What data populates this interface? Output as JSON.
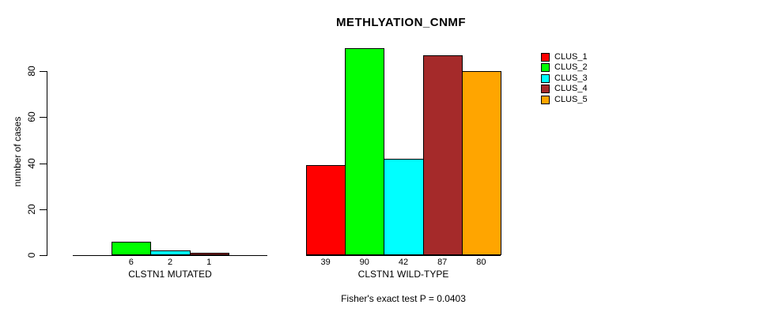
{
  "chart_data": {
    "type": "bar",
    "title": "METHLYATION_CNMF",
    "ylabel": "number of cases",
    "ylim": [
      0,
      90
    ],
    "yticks": [
      0,
      20,
      40,
      60,
      80
    ],
    "grid": false,
    "legend_position": "right-outside",
    "bar_border_color": "#000000",
    "background_color": "#ffffff",
    "categories": [
      "CLSTN1 MUTATED",
      "CLSTN1 WILD-TYPE"
    ],
    "groups": [
      {
        "label": "CLSTN1 MUTATED",
        "values": [
          0,
          6,
          2,
          1,
          0
        ]
      },
      {
        "label": "CLSTN1 WILD-TYPE",
        "values": [
          39,
          90,
          42,
          87,
          80
        ]
      }
    ],
    "series": [
      {
        "name": "CLUS_1",
        "color": "#FF0000"
      },
      {
        "name": "CLUS_2",
        "color": "#00FF00"
      },
      {
        "name": "CLUS_3",
        "color": "#00FFFF"
      },
      {
        "name": "CLUS_4",
        "color": "#A52A2A"
      },
      {
        "name": "CLUS_5",
        "color": "#FFA500"
      }
    ],
    "footnote": "Fisher's exact test P = 0.0403"
  }
}
